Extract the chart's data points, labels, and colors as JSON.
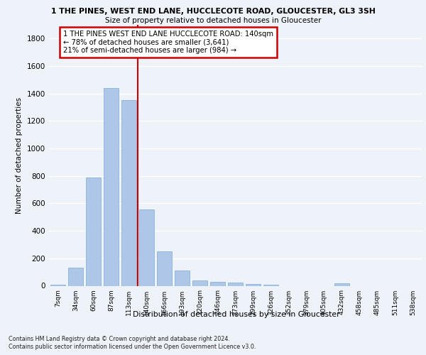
{
  "title1": "1 THE PINES, WEST END LANE, HUCCLECOTE ROAD, GLOUCESTER, GL3 3SH",
  "title2": "Size of property relative to detached houses in Gloucester",
  "xlabel": "Distribution of detached houses by size in Gloucester",
  "ylabel": "Number of detached properties",
  "bar_labels": [
    "7sqm",
    "34sqm",
    "60sqm",
    "87sqm",
    "113sqm",
    "140sqm",
    "166sqm",
    "193sqm",
    "220sqm",
    "246sqm",
    "273sqm",
    "299sqm",
    "326sqm",
    "352sqm",
    "379sqm",
    "405sqm",
    "432sqm",
    "458sqm",
    "485sqm",
    "511sqm",
    "538sqm"
  ],
  "bar_values": [
    10,
    130,
    790,
    1440,
    1350,
    555,
    250,
    110,
    38,
    28,
    25,
    15,
    8,
    0,
    0,
    0,
    20,
    0,
    0,
    0,
    0
  ],
  "bar_color": "#aec6e8",
  "bar_edge_color": "#7aadd4",
  "highlight_index": 5,
  "highlight_line_color": "#cc0000",
  "annotation_text": "1 THE PINES WEST END LANE HUCCLECOTE ROAD: 140sqm\n← 78% of detached houses are smaller (3,641)\n21% of semi-detached houses are larger (984) →",
  "annotation_box_color": "#ffffff",
  "annotation_box_edge": "#cc0000",
  "ylim": [
    0,
    1900
  ],
  "yticks": [
    0,
    200,
    400,
    600,
    800,
    1000,
    1200,
    1400,
    1600,
    1800
  ],
  "footer1": "Contains HM Land Registry data © Crown copyright and database right 2024.",
  "footer2": "Contains public sector information licensed under the Open Government Licence v3.0.",
  "bg_color": "#eef2f9",
  "grid_color": "#ffffff"
}
